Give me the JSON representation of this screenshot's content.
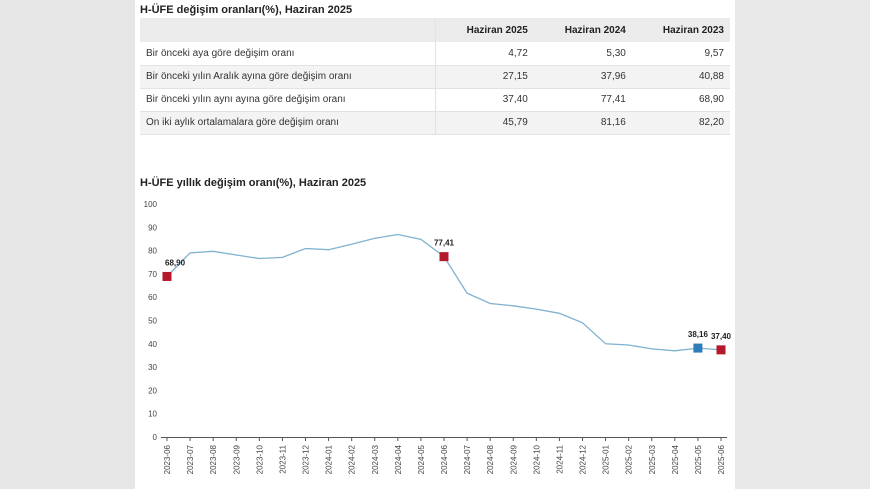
{
  "table": {
    "title": "H-ÜFE değişim oranları(%), Haziran 2025",
    "headers": [
      "",
      "Haziran 2025",
      "Haziran 2024",
      "Haziran 2023"
    ],
    "rows": [
      {
        "label": "Bir önceki aya göre değişim oranı",
        "values": [
          "4,72",
          "5,30",
          "9,57"
        ]
      },
      {
        "label": "Bir önceki yılın Aralık ayına göre değişim oranı",
        "values": [
          "27,15",
          "37,96",
          "40,88"
        ]
      },
      {
        "label": "Bir önceki yılın aynı ayına göre değişim oranı",
        "values": [
          "37,40",
          "77,41",
          "68,90"
        ]
      },
      {
        "label": "On iki aylık ortalamalara göre değişim oranı",
        "values": [
          "45,79",
          "81,16",
          "82,20"
        ]
      }
    ]
  },
  "chart_data": {
    "type": "line",
    "title": "H-ÜFE yıllık değişim oranı(%), Haziran 2025",
    "ylim": [
      0,
      100
    ],
    "yticks": [
      0,
      10,
      20,
      30,
      40,
      50,
      60,
      70,
      80,
      90,
      100
    ],
    "x": [
      "2023-06",
      "2023-07",
      "2023-08",
      "2023-09",
      "2023-10",
      "2023-11",
      "2023-12",
      "2024-01",
      "2024-02",
      "2024-03",
      "2024-04",
      "2024-05",
      "2024-06",
      "2024-07",
      "2024-08",
      "2024-09",
      "2024-10",
      "2024-11",
      "2024-12",
      "2025-01",
      "2025-02",
      "2025-03",
      "2025-04",
      "2025-05",
      "2025-06"
    ],
    "series": [
      {
        "values": [
          68.9,
          79.0,
          79.7,
          78.1,
          76.6,
          77.1,
          80.9,
          80.4,
          82.7,
          85.3,
          86.9,
          84.8,
          77.41,
          61.7,
          57.3,
          56.3,
          54.9,
          53.1,
          49.0,
          40.0,
          39.5,
          37.8,
          37.0,
          38.16,
          37.4
        ]
      }
    ],
    "highlights": [
      {
        "x": "2023-06",
        "value": 68.9,
        "label": "68,90",
        "color": "#b3182b"
      },
      {
        "x": "2024-06",
        "value": 77.41,
        "label": "77,41",
        "color": "#b3182b"
      },
      {
        "x": "2025-05",
        "value": 38.16,
        "label": "38,16",
        "color": "#2e7cb8"
      },
      {
        "x": "2025-06",
        "value": 37.4,
        "label": "37,40",
        "color": "#b3182b"
      }
    ],
    "colors": {
      "line": "#7fb2cf",
      "axis": "#555555"
    }
  }
}
